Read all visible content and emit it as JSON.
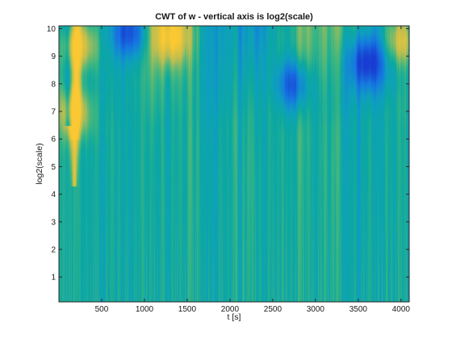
{
  "chart_data": {
    "type": "heatmap",
    "title": "CWT of w - vertical axis is log2(scale)",
    "xlabel": "t [s]",
    "ylabel": "log2(scale)",
    "xlim": [
      0,
      4096
    ],
    "ylim": [
      0.1,
      10.1
    ],
    "xticks": [
      500,
      1000,
      1500,
      2000,
      2500,
      3000,
      3500,
      4000
    ],
    "yticks": [
      1,
      2,
      3,
      4,
      5,
      6,
      7,
      8,
      9,
      10
    ],
    "colormap": "parula",
    "features": [
      {
        "t": 180,
        "level": 7.0,
        "value": "high"
      },
      {
        "t": 240,
        "level": 9.4,
        "value": "high"
      },
      {
        "t": 830,
        "level": 9.9,
        "value": "low"
      },
      {
        "t": 1300,
        "level": 9.7,
        "value": "high"
      },
      {
        "t": 3600,
        "level": 8.8,
        "value": "low"
      },
      {
        "t": 2730,
        "level": 8.0,
        "value": "low"
      },
      {
        "t": 4000,
        "level": 9.6,
        "value": "high"
      }
    ],
    "grid": false
  },
  "colors": {
    "background": "#0aa2a0",
    "low": "#1f5fd8",
    "high": "#f2c436",
    "frame": "#262626"
  }
}
